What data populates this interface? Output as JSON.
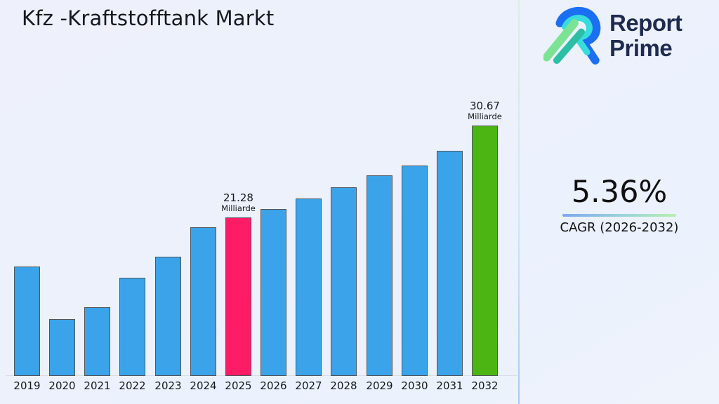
{
  "page": {
    "title": "Kfz -Kraftstofftank Markt",
    "background_color": "#edf1fc"
  },
  "logo": {
    "name": "Report Prime",
    "line1": "Report",
    "line2": "Prime",
    "text_color": "#1f2a50",
    "icon": "report-prime-R-mark",
    "icon_colors": {
      "blue": "#1a6ff2",
      "cyan": "#38dcdc",
      "green": "#7de394",
      "teal": "#2cbfa5"
    }
  },
  "stats": {
    "cagr_value": "5.36%",
    "cagr_label": "CAGR (2026-2032)",
    "underline_gradient": [
      "#7ea8f0",
      "#b9efad"
    ]
  },
  "chart_data": {
    "type": "bar",
    "title": "Kfz -Kraftstofftank Markt",
    "unit": "Milliarde",
    "categories": [
      "2019",
      "2020",
      "2021",
      "2022",
      "2023",
      "2024",
      "2025",
      "2026",
      "2027",
      "2028",
      "2029",
      "2030",
      "2031",
      "2032"
    ],
    "values": [
      16.26,
      10.89,
      12.1,
      15.12,
      17.27,
      20.28,
      21.28,
      22.14,
      23.22,
      24.36,
      25.58,
      26.58,
      28.09,
      30.67
    ],
    "value_labels": [
      {
        "category": "2025",
        "value": "21.28",
        "unit": "Milliarde"
      },
      {
        "category": "2032",
        "value": "30.67",
        "unit": "Milliarde"
      }
    ],
    "colors": {
      "default": "#3aa3e9",
      "bar_edge": "#50555c"
    },
    "bar_color_overrides": {
      "2025": "#fe1c66",
      "2032": "#4db513"
    },
    "ylim": [
      5.08,
      30.9
    ],
    "xlabel": "",
    "ylabel": "",
    "grid": false,
    "legend": false
  }
}
